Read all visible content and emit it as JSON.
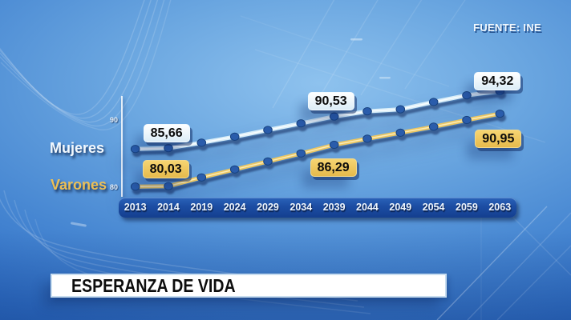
{
  "source_label": "FUENTE: INE",
  "banner_title": "ESPERANZA DE VIDA",
  "chart_data": {
    "type": "line",
    "title": "ESPERANZA DE VIDA",
    "xlabel": "",
    "ylabel": "",
    "grid": false,
    "legend_position": "left",
    "categories": [
      "2013",
      "2014",
      "2019",
      "2024",
      "2029",
      "2034",
      "2039",
      "2044",
      "2049",
      "2054",
      "2059",
      "2063"
    ],
    "series": [
      {
        "name": "Mujeres",
        "color": "#d9eef9",
        "values": [
          85.66,
          85.8,
          86.6,
          87.5,
          88.5,
          89.5,
          90.53,
          91.3,
          91.6,
          92.7,
          93.7,
          94.32
        ]
      },
      {
        "name": "Varones",
        "color": "#ecc763",
        "values": [
          80.03,
          80.1,
          81.4,
          82.6,
          83.8,
          85.0,
          86.29,
          87.2,
          88.1,
          89.0,
          90.0,
          90.95
        ]
      }
    ],
    "ylim": [
      78,
      96
    ],
    "yticks": [
      {
        "label": "90",
        "value": 90
      },
      {
        "label": "80",
        "value": 80
      }
    ],
    "callouts": [
      {
        "series": 0,
        "point": 0,
        "label": "85,66",
        "style": "light",
        "side": "above",
        "dx": 39,
        "gap": 8
      },
      {
        "series": 0,
        "point": 6,
        "label": "90,53",
        "style": "light",
        "side": "above",
        "dx": -4,
        "gap": 8
      },
      {
        "series": 0,
        "point": 11,
        "label": "94,32",
        "style": "light",
        "side": "above",
        "dx": -3,
        "gap": 1
      },
      {
        "series": 1,
        "point": 0,
        "label": "80,03",
        "style": "gold",
        "side": "above",
        "dx": 38,
        "gap": 10
      },
      {
        "series": 1,
        "point": 6,
        "label": "86,29",
        "style": "gold",
        "side": "below",
        "dx": -1,
        "gap": 17
      },
      {
        "series": 1,
        "point": 11,
        "label": "90,95",
        "style": "gold",
        "side": "below",
        "dx": -2,
        "gap": 20
      }
    ],
    "dot_color": "#2a5cab"
  }
}
